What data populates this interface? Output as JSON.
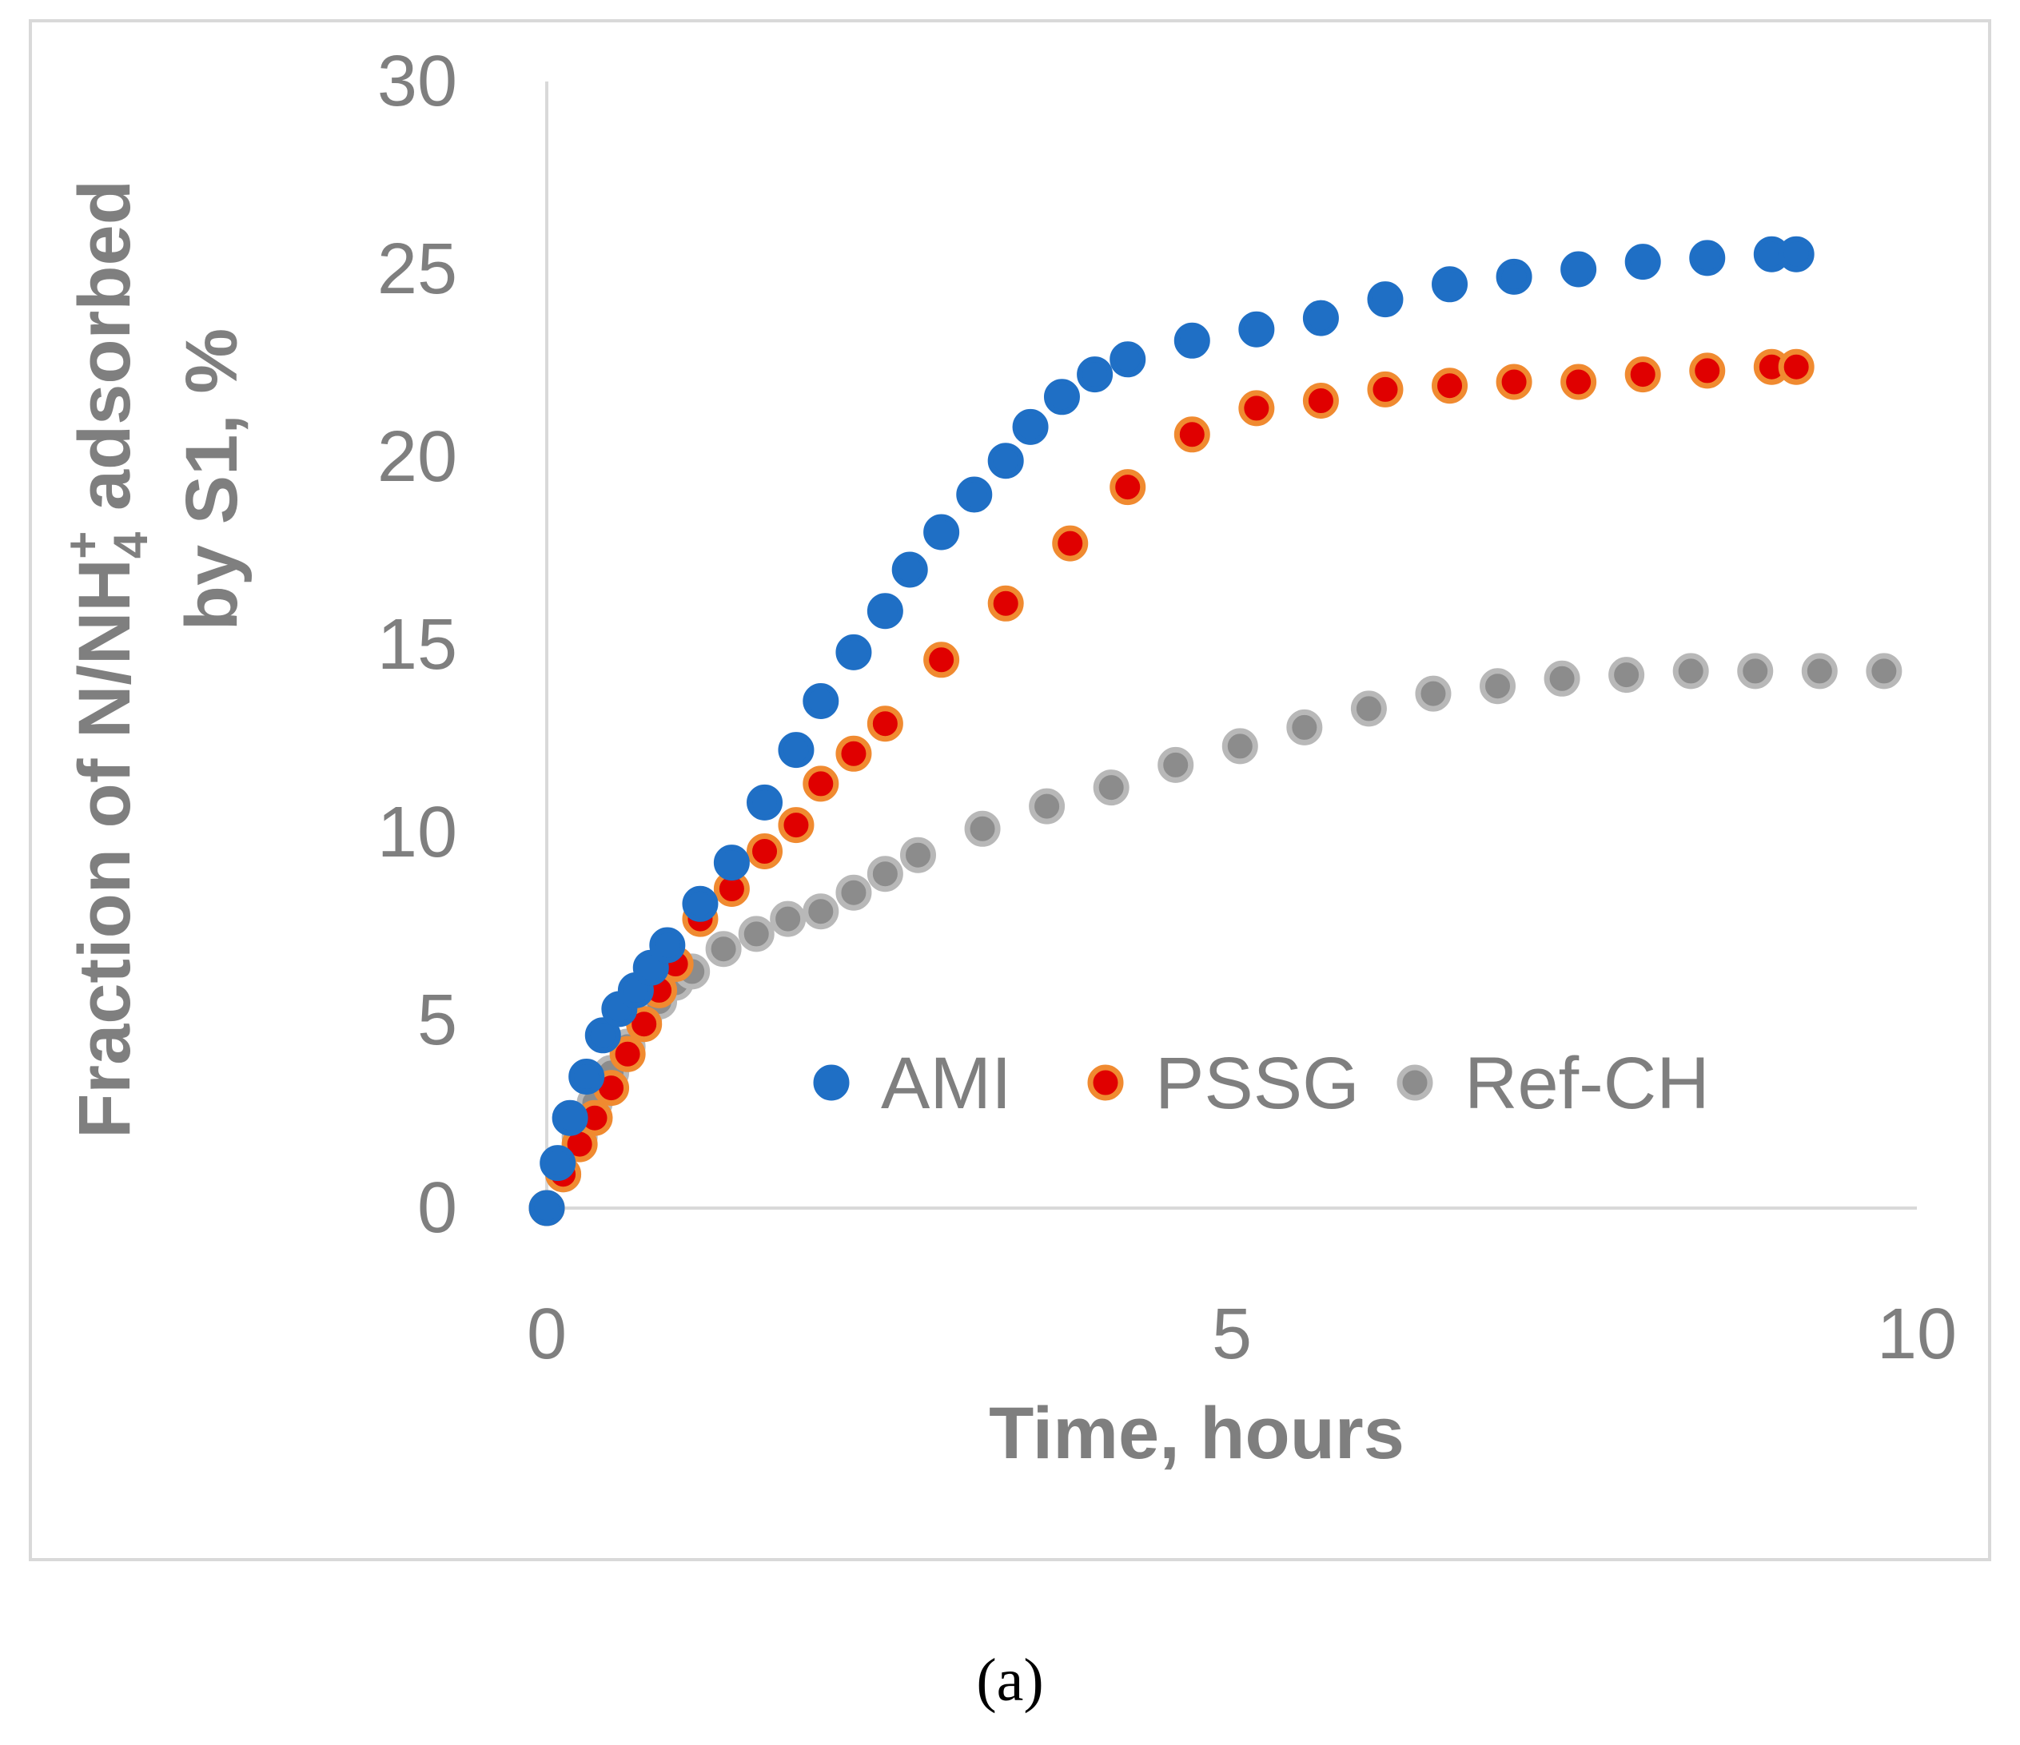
{
  "chart_data": {
    "type": "scatter",
    "title": "",
    "xlabel": "Time, hours",
    "ylabel_line1_prefix": "Fraction of  N/NH",
    "ylabel_sub": "4",
    "ylabel_sup": "+",
    "ylabel_line1_suffix": " adsorbed",
    "ylabel_line2": "by S1, %",
    "xlim": [
      0,
      10
    ],
    "ylim": [
      0,
      30
    ],
    "xticks": [
      "0",
      "5",
      "10"
    ],
    "yticks": [
      "0",
      "5",
      "10",
      "15",
      "20",
      "25",
      "30"
    ],
    "legend_position": "bottom-right, inside plot",
    "series": [
      {
        "name": "AMI",
        "color": "#1f6fc5",
        "edge": "#1f6fc5",
        "x": [
          0.0,
          0.08,
          0.17,
          0.29,
          0.41,
          0.53,
          0.65,
          0.76,
          0.88,
          1.12,
          1.35,
          1.59,
          1.82,
          2.0,
          2.24,
          2.47,
          2.65,
          2.88,
          3.12,
          3.35,
          3.53,
          3.76,
          4.0,
          4.24,
          4.71,
          5.18,
          5.65,
          6.12,
          6.59,
          7.06,
          7.53,
          8.0,
          8.47,
          8.94,
          9.12
        ],
        "y": [
          0.0,
          1.2,
          2.4,
          3.5,
          4.6,
          5.3,
          5.8,
          6.4,
          7.0,
          8.1,
          9.2,
          10.8,
          12.2,
          13.5,
          14.8,
          15.9,
          17.0,
          18.0,
          19.0,
          19.9,
          20.8,
          21.6,
          22.2,
          22.6,
          23.1,
          23.4,
          23.7,
          24.2,
          24.6,
          24.8,
          25.0,
          25.2,
          25.3,
          25.4,
          25.4
        ]
      },
      {
        "name": "PSSG",
        "color": "#e00000",
        "edge": "#f08a30",
        "x": [
          0.0,
          0.12,
          0.24,
          0.35,
          0.47,
          0.59,
          0.71,
          0.82,
          0.94,
          1.12,
          1.35,
          1.59,
          1.82,
          2.0,
          2.24,
          2.47,
          2.88,
          3.35,
          3.82,
          4.24,
          4.71,
          5.18,
          5.65,
          6.12,
          6.59,
          7.06,
          7.53,
          8.0,
          8.47,
          8.94,
          9.12
        ],
        "y": [
          0.0,
          0.9,
          1.7,
          2.4,
          3.2,
          4.1,
          4.9,
          5.8,
          6.5,
          7.7,
          8.5,
          9.5,
          10.2,
          11.3,
          12.1,
          12.9,
          14.6,
          16.1,
          17.7,
          19.2,
          20.6,
          21.3,
          21.5,
          21.8,
          21.9,
          22.0,
          22.0,
          22.2,
          22.3,
          22.4,
          22.4
        ]
      },
      {
        "name": "Ref-CH",
        "color": "#8c8c8c",
        "edge": "#b8b8b8",
        "x": [
          0.0,
          0.12,
          0.24,
          0.35,
          0.47,
          0.59,
          0.71,
          0.82,
          0.94,
          1.06,
          1.29,
          1.53,
          1.76,
          2.0,
          2.24,
          2.47,
          2.71,
          3.18,
          3.65,
          4.12,
          4.59,
          5.06,
          5.53,
          6.0,
          6.47,
          6.94,
          7.41,
          7.88,
          8.35,
          8.82,
          9.29,
          9.76
        ],
        "y": [
          0.0,
          0.9,
          1.9,
          2.8,
          3.6,
          4.3,
          5.0,
          5.5,
          6.0,
          6.3,
          6.9,
          7.3,
          7.7,
          7.9,
          8.4,
          8.9,
          9.4,
          10.1,
          10.7,
          11.2,
          11.8,
          12.3,
          12.8,
          13.3,
          13.7,
          13.9,
          14.1,
          14.2,
          14.3,
          14.3,
          14.3,
          14.3
        ]
      }
    ]
  },
  "figure": {
    "panel_label": "(a)"
  }
}
